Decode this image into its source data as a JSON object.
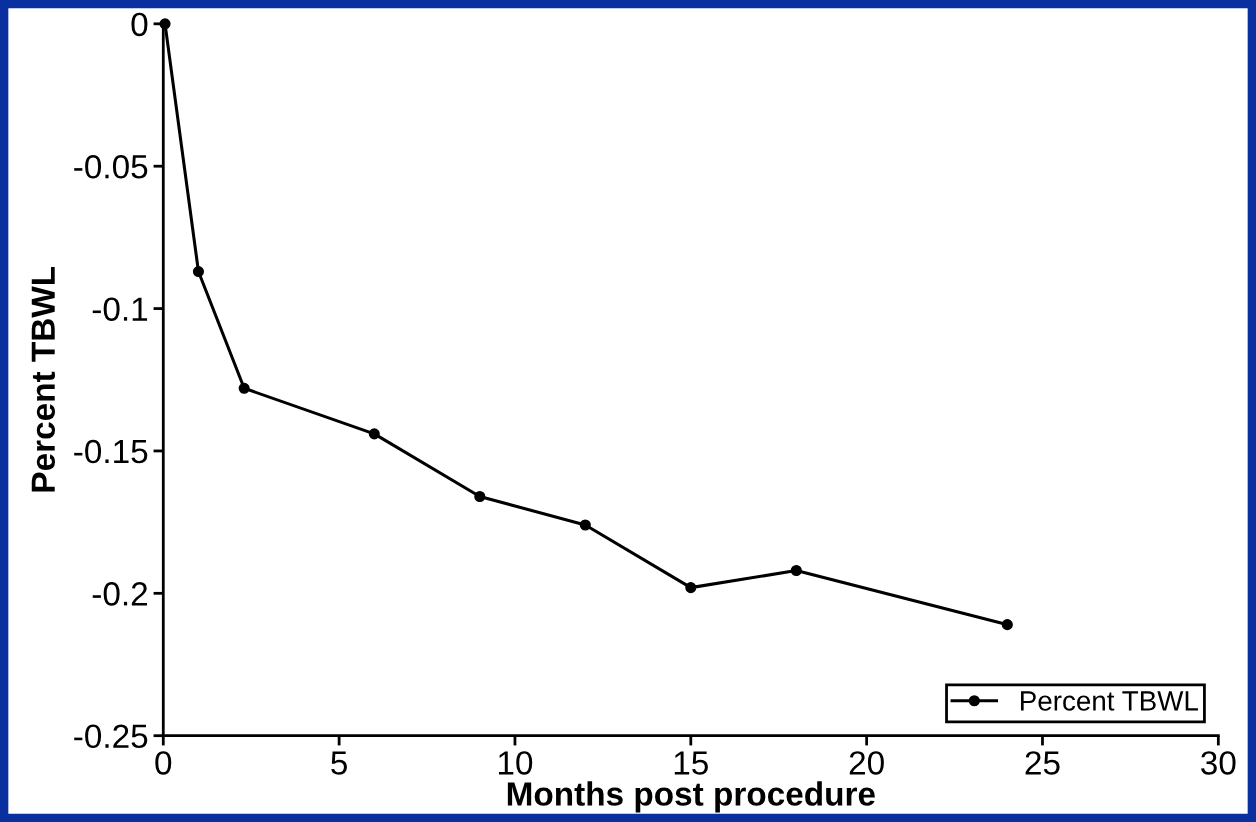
{
  "chart_data": {
    "type": "line",
    "xlabel": "Months post procedure",
    "ylabel": "Percent TBWL",
    "x": [
      0.05,
      1,
      2.3,
      6,
      9,
      12,
      15,
      18,
      24
    ],
    "series": [
      {
        "name": "Percent TBWL",
        "color": "#000000",
        "values": [
          0,
          -0.087,
          -0.128,
          -0.144,
          -0.166,
          -0.176,
          -0.198,
          -0.192,
          -0.211
        ]
      }
    ],
    "xlim": [
      0,
      30
    ],
    "xticks": [
      0,
      5,
      10,
      15,
      20,
      25,
      30
    ],
    "ylim": [
      -0.25,
      0
    ],
    "yticks": [
      -0.25,
      -0.2,
      -0.15,
      -0.1,
      -0.05,
      0
    ],
    "marker": "circle",
    "line_style": "solid",
    "legend": "bottom right",
    "grid": false
  }
}
